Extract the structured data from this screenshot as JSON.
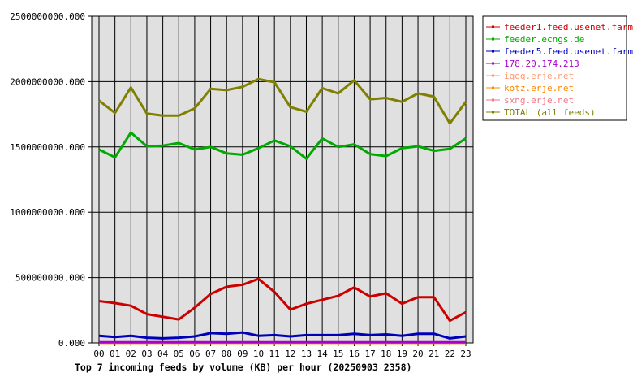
{
  "chart_data": {
    "type": "line",
    "title": "Top 7 incoming feeds by volume (KB) per hour (20250903 2358)",
    "xlabel": "",
    "ylabel": "",
    "categories": [
      "00",
      "01",
      "02",
      "03",
      "04",
      "05",
      "06",
      "07",
      "08",
      "09",
      "10",
      "11",
      "12",
      "13",
      "14",
      "15",
      "16",
      "17",
      "18",
      "19",
      "20",
      "21",
      "22",
      "23"
    ],
    "ylim": [
      0,
      2500000000
    ],
    "y_ticks": [
      "0.000",
      "500000000.000",
      "1000000000.000",
      "1500000000.000",
      "2000000000.000",
      "2500000000.000"
    ],
    "grid": true,
    "legend_position": "right",
    "series": [
      {
        "name": "feeder1.feed.usenet.farm",
        "color": "#cc0000",
        "values": [
          320000000,
          305000000,
          285000000,
          220000000,
          200000000,
          180000000,
          270000000,
          375000000,
          430000000,
          445000000,
          490000000,
          390000000,
          255000000,
          300000000,
          330000000,
          360000000,
          425000000,
          355000000,
          380000000,
          300000000,
          350000000,
          350000000,
          170000000,
          235000000
        ]
      },
      {
        "name": "feeder.ecngs.de",
        "color": "#00aa00",
        "values": [
          1480000000,
          1420000000,
          1610000000,
          1505000000,
          1510000000,
          1530000000,
          1480000000,
          1500000000,
          1450000000,
          1440000000,
          1490000000,
          1550000000,
          1505000000,
          1410000000,
          1565000000,
          1500000000,
          1520000000,
          1445000000,
          1430000000,
          1490000000,
          1505000000,
          1470000000,
          1485000000,
          1565000000
        ]
      },
      {
        "name": "feeder5.feed.usenet.farm",
        "color": "#0000bb",
        "values": [
          55000000,
          45000000,
          55000000,
          40000000,
          35000000,
          40000000,
          50000000,
          75000000,
          70000000,
          80000000,
          55000000,
          60000000,
          50000000,
          60000000,
          60000000,
          60000000,
          70000000,
          60000000,
          65000000,
          55000000,
          70000000,
          70000000,
          35000000,
          50000000
        ]
      },
      {
        "name": "178.20.174.213",
        "color": "#aa00cc",
        "values": [
          5000000,
          5000000,
          5000000,
          5000000,
          5000000,
          5000000,
          5000000,
          5000000,
          5000000,
          5000000,
          5000000,
          5000000,
          5000000,
          5000000,
          5000000,
          5000000,
          5000000,
          5000000,
          5000000,
          5000000,
          5000000,
          5000000,
          5000000,
          5000000
        ]
      },
      {
        "name": "iqoq.erje.net",
        "color": "#ff9977",
        "values": [
          3000000,
          3000000,
          3000000,
          3000000,
          3000000,
          3000000,
          3000000,
          3000000,
          3000000,
          3000000,
          3000000,
          3000000,
          3000000,
          3000000,
          3000000,
          3000000,
          3000000,
          3000000,
          3000000,
          3000000,
          3000000,
          3000000,
          3000000,
          3000000
        ]
      },
      {
        "name": "kotz.erje.net",
        "color": "#ff8800",
        "values": [
          2000000,
          2000000,
          2000000,
          2000000,
          2000000,
          2000000,
          2000000,
          2000000,
          2000000,
          2000000,
          2000000,
          2000000,
          2000000,
          2000000,
          2000000,
          2000000,
          2000000,
          2000000,
          2000000,
          2000000,
          2000000,
          2000000,
          2000000,
          2000000
        ]
      },
      {
        "name": "sxng.erje.net",
        "color": "#ee7788",
        "values": [
          1000000,
          1000000,
          1000000,
          1000000,
          1000000,
          1000000,
          1000000,
          1000000,
          1000000,
          1000000,
          1000000,
          1000000,
          1000000,
          1000000,
          1000000,
          1000000,
          1000000,
          1000000,
          1000000,
          1000000,
          1000000,
          1000000,
          1000000,
          1000000
        ]
      },
      {
        "name": "TOTAL (all feeds)",
        "color": "#808000",
        "values": [
          1855000000,
          1760000000,
          1955000000,
          1755000000,
          1740000000,
          1740000000,
          1795000000,
          1945000000,
          1935000000,
          1960000000,
          2020000000,
          1995000000,
          1805000000,
          1770000000,
          1950000000,
          1910000000,
          2010000000,
          1865000000,
          1875000000,
          1845000000,
          1910000000,
          1885000000,
          1680000000,
          1845000000
        ]
      }
    ]
  }
}
